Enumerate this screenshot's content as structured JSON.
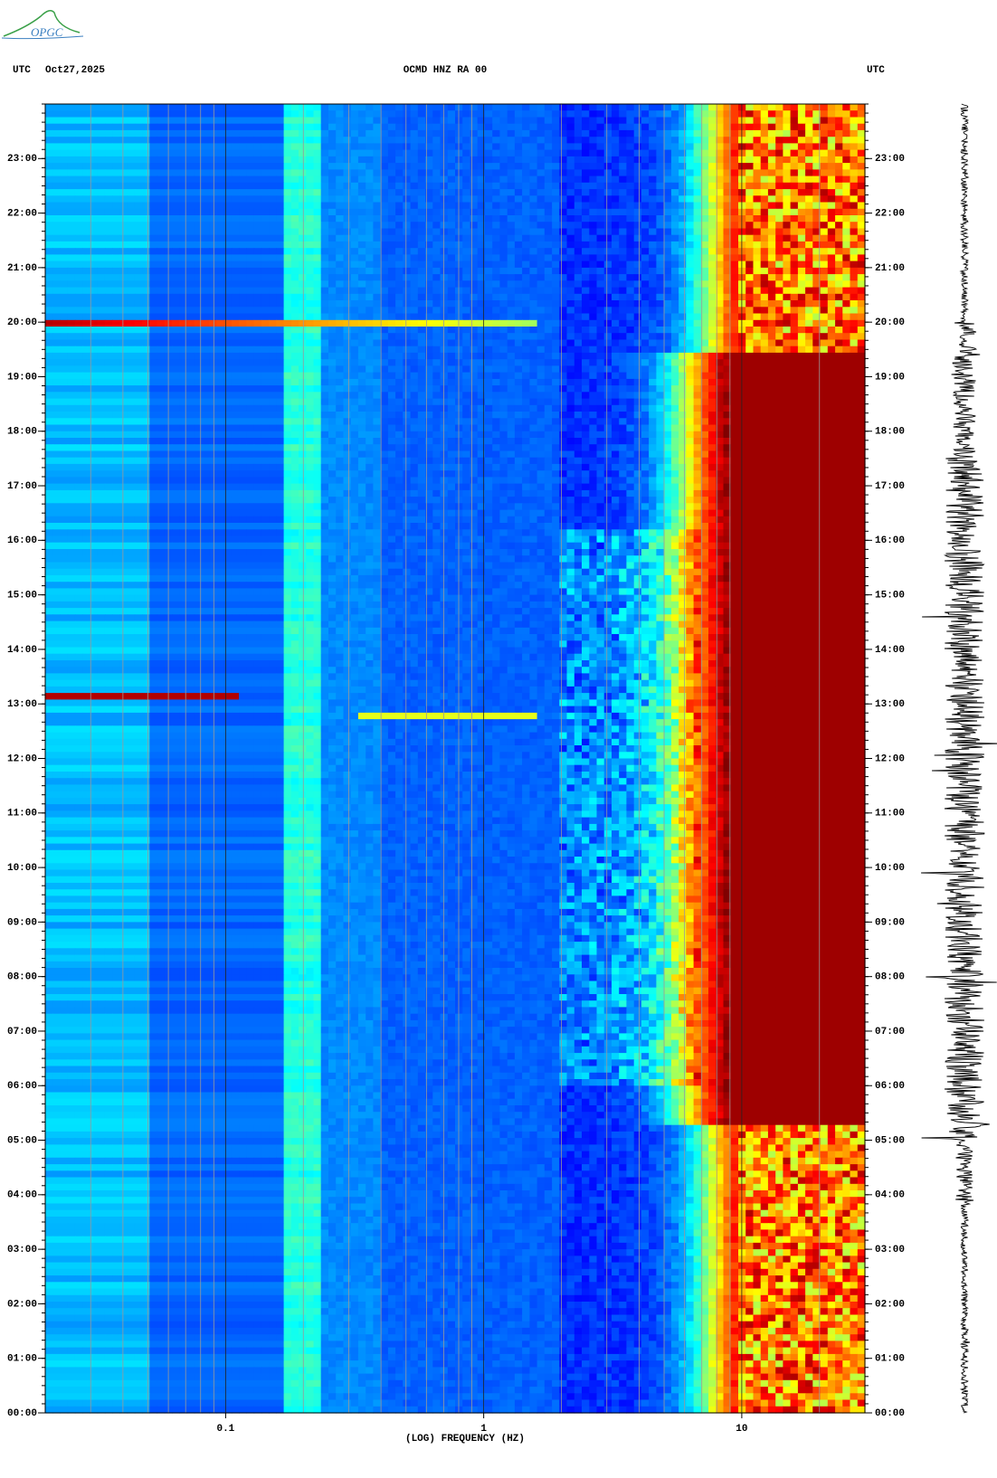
{
  "chart_data": {
    "type": "spectrogram",
    "logo_text": "OPGC",
    "y_label": "UTC",
    "date": "Oct27,2025",
    "title": "OCMD HNZ RA 00",
    "y2_label": "UTC",
    "xlabel": "(LOG) FREQUENCY (HZ)",
    "xscale": "log",
    "xlim": [
      0.02,
      30
    ],
    "xticks": [
      0.1,
      1,
      10
    ],
    "ylim": [
      0,
      24
    ],
    "yticks": [
      {
        "value": 0,
        "label": "00:00"
      },
      {
        "value": 1,
        "label": "01:00"
      },
      {
        "value": 2,
        "label": "02:00"
      },
      {
        "value": 3,
        "label": "03:00"
      },
      {
        "value": 4,
        "label": "04:00"
      },
      {
        "value": 5,
        "label": "05:00"
      },
      {
        "value": 6,
        "label": "06:00"
      },
      {
        "value": 7,
        "label": "07:00"
      },
      {
        "value": 8,
        "label": "08:00"
      },
      {
        "value": 9,
        "label": "09:00"
      },
      {
        "value": 10,
        "label": "10:00"
      },
      {
        "value": 11,
        "label": "11:00"
      },
      {
        "value": 12,
        "label": "12:00"
      },
      {
        "value": 13,
        "label": "13:00"
      },
      {
        "value": 14,
        "label": "14:00"
      },
      {
        "value": 15,
        "label": "15:00"
      },
      {
        "value": 16,
        "label": "16:00"
      },
      {
        "value": 17,
        "label": "17:00"
      },
      {
        "value": 18,
        "label": "18:00"
      },
      {
        "value": 19,
        "label": "19:00"
      },
      {
        "value": 20,
        "label": "20:00"
      },
      {
        "value": 21,
        "label": "21:00"
      },
      {
        "value": 22,
        "label": "22:00"
      },
      {
        "value": 23,
        "label": "23:00"
      }
    ]
  }
}
